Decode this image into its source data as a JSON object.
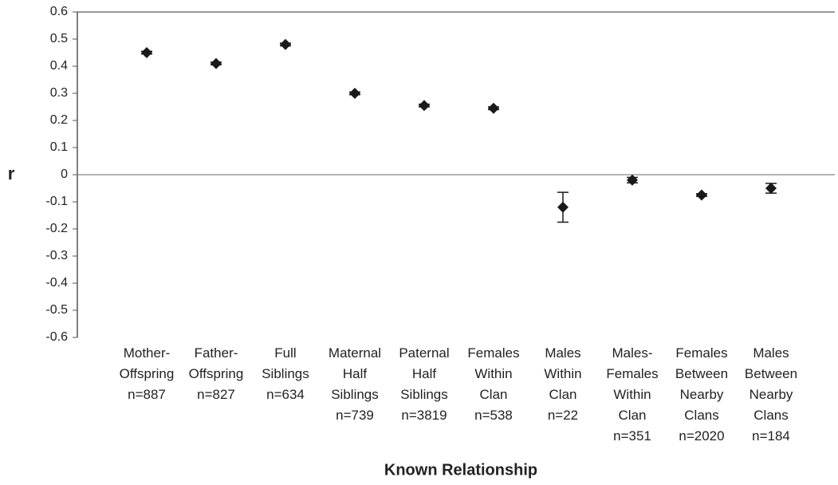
{
  "chart_data": {
    "type": "errorbar",
    "x_label": "Known Relationship",
    "y_label": "r",
    "categories": [
      "Mother-\nOffspring\nn=887",
      "Father-\nOffspring\nn=827",
      "Full\nSiblings\nn=634",
      "Maternal\nHalf\nSiblings\nn=739",
      "Paternal\nHalf\nSiblings\nn=3819",
      "Females\nWithin\nClan\nn=538",
      "Males\nWithin\nClan\nn=22",
      "Males-\nFemales\nWithin\nClan\nn=351",
      "Females\nBetween\nNearby\nClans\nn=2020",
      "Males\nBetween\nNearby\nClans\nn=184"
    ],
    "values": [
      0.45,
      0.41,
      0.48,
      0.3,
      0.255,
      0.245,
      -0.12,
      -0.02,
      -0.075,
      -0.05
    ],
    "errors": [
      0.005,
      0.005,
      0.005,
      0.005,
      0.005,
      0.005,
      0.055,
      0.01,
      0.005,
      0.018
    ],
    "color": "#1a1a1a",
    "ylim": [
      -0.6,
      0.6
    ],
    "yticks": [
      -0.6,
      -0.5,
      -0.4,
      -0.3,
      -0.2,
      -0.1,
      0,
      0.1,
      0.2,
      0.3,
      0.4,
      0.5,
      0.6
    ]
  }
}
